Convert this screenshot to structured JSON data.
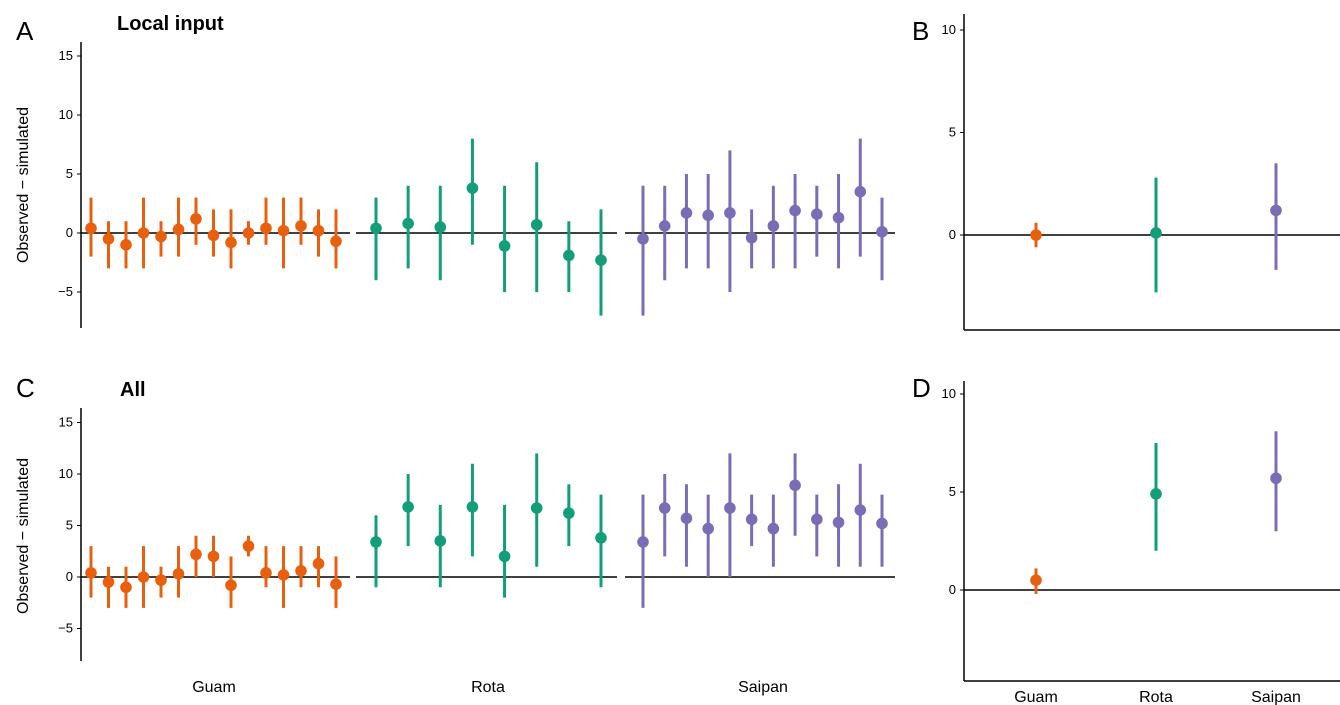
{
  "colors": {
    "Guam": "#E8600E",
    "Rota": "#129E78",
    "Saipan": "#7B6DB5",
    "axis": "#000000"
  },
  "chart_data": [
    {
      "panel": "A",
      "title": "Local input",
      "type": "scatter",
      "error_bars": true,
      "ylabel": "Observed − simulated",
      "ylim": [
        -8,
        16
      ],
      "yticks": [
        -5,
        0,
        5,
        10,
        15
      ],
      "reference_line": 0,
      "groups": [
        {
          "name": "Guam",
          "points": [
            {
              "y": 0.4,
              "lo": -2,
              "hi": 3
            },
            {
              "y": -0.5,
              "lo": -3,
              "hi": 1
            },
            {
              "y": -1.0,
              "lo": -3,
              "hi": 1
            },
            {
              "y": 0.0,
              "lo": -3,
              "hi": 3
            },
            {
              "y": -0.3,
              "lo": -2,
              "hi": 1
            },
            {
              "y": 0.3,
              "lo": -2,
              "hi": 3
            },
            {
              "y": 1.2,
              "lo": -1,
              "hi": 3
            },
            {
              "y": -0.2,
              "lo": -2,
              "hi": 2
            },
            {
              "y": -0.8,
              "lo": -3,
              "hi": 2
            },
            {
              "y": 0.0,
              "lo": -1,
              "hi": 1
            },
            {
              "y": 0.4,
              "lo": -1,
              "hi": 3
            },
            {
              "y": 0.2,
              "lo": -3,
              "hi": 3
            },
            {
              "y": 0.6,
              "lo": -1,
              "hi": 3
            },
            {
              "y": 0.2,
              "lo": -2,
              "hi": 2
            },
            {
              "y": -0.7,
              "lo": -3,
              "hi": 2
            }
          ]
        },
        {
          "name": "Rota",
          "points": [
            {
              "y": 0.4,
              "lo": -4,
              "hi": 3
            },
            {
              "y": 0.8,
              "lo": -3,
              "hi": 4
            },
            {
              "y": 0.5,
              "lo": -4,
              "hi": 4
            },
            {
              "y": 3.8,
              "lo": -1,
              "hi": 8
            },
            {
              "y": -1.1,
              "lo": -5,
              "hi": 4
            },
            {
              "y": 0.7,
              "lo": -5,
              "hi": 6
            },
            {
              "y": -1.9,
              "lo": -5,
              "hi": 1
            },
            {
              "y": -2.3,
              "lo": -7,
              "hi": 2
            }
          ]
        },
        {
          "name": "Saipan",
          "points": [
            {
              "y": -0.5,
              "lo": -7,
              "hi": 4
            },
            {
              "y": 0.6,
              "lo": -4,
              "hi": 4
            },
            {
              "y": 1.7,
              "lo": -3,
              "hi": 5
            },
            {
              "y": 1.5,
              "lo": -3,
              "hi": 5
            },
            {
              "y": 1.7,
              "lo": -5,
              "hi": 7
            },
            {
              "y": -0.4,
              "lo": -3,
              "hi": 2
            },
            {
              "y": 0.6,
              "lo": -3,
              "hi": 4
            },
            {
              "y": 1.9,
              "lo": -3,
              "hi": 5
            },
            {
              "y": 1.6,
              "lo": -2,
              "hi": 4
            },
            {
              "y": 1.3,
              "lo": -3,
              "hi": 5
            },
            {
              "y": 3.5,
              "lo": -2,
              "hi": 8
            },
            {
              "y": 0.1,
              "lo": -4,
              "hi": 3
            }
          ]
        }
      ]
    },
    {
      "panel": "B",
      "title": "",
      "type": "scatter",
      "error_bars": true,
      "ylim": [
        -4.7,
        10.7
      ],
      "yticks": [
        0,
        5,
        10
      ],
      "reference_line": 0,
      "categories": [
        "Guam",
        "Rota",
        "Saipan"
      ],
      "points": [
        {
          "group": "Guam",
          "y": 0.0,
          "lo": -0.6,
          "hi": 0.6
        },
        {
          "group": "Rota",
          "y": 0.1,
          "lo": -2.8,
          "hi": 2.8
        },
        {
          "group": "Saipan",
          "y": 1.2,
          "lo": -1.7,
          "hi": 3.5
        }
      ]
    },
    {
      "panel": "C",
      "title": "All",
      "type": "scatter",
      "error_bars": true,
      "ylabel": "Observed − simulated",
      "ylim": [
        -8,
        16
      ],
      "yticks": [
        -5,
        0,
        5,
        10,
        15
      ],
      "reference_line": 0,
      "groups": [
        {
          "name": "Guam",
          "points": [
            {
              "y": 0.4,
              "lo": -2,
              "hi": 3
            },
            {
              "y": -0.5,
              "lo": -3,
              "hi": 1
            },
            {
              "y": -1.0,
              "lo": -3,
              "hi": 1
            },
            {
              "y": 0.0,
              "lo": -3,
              "hi": 3
            },
            {
              "y": -0.3,
              "lo": -2,
              "hi": 1
            },
            {
              "y": 0.3,
              "lo": -2,
              "hi": 3
            },
            {
              "y": 2.2,
              "lo": 0,
              "hi": 4
            },
            {
              "y": 2.0,
              "lo": 0,
              "hi": 4
            },
            {
              "y": -0.8,
              "lo": -3,
              "hi": 2
            },
            {
              "y": 3.0,
              "lo": 2,
              "hi": 4
            },
            {
              "y": 0.4,
              "lo": -1,
              "hi": 3
            },
            {
              "y": 0.2,
              "lo": -3,
              "hi": 3
            },
            {
              "y": 0.6,
              "lo": -1,
              "hi": 3
            },
            {
              "y": 1.3,
              "lo": -1,
              "hi": 3
            },
            {
              "y": -0.7,
              "lo": -3,
              "hi": 2
            }
          ]
        },
        {
          "name": "Rota",
          "points": [
            {
              "y": 3.4,
              "lo": -1,
              "hi": 6
            },
            {
              "y": 6.8,
              "lo": 3,
              "hi": 10
            },
            {
              "y": 3.5,
              "lo": -1,
              "hi": 7
            },
            {
              "y": 6.8,
              "lo": 2,
              "hi": 11
            },
            {
              "y": 2.0,
              "lo": -2,
              "hi": 7
            },
            {
              "y": 6.7,
              "lo": 1,
              "hi": 12
            },
            {
              "y": 6.2,
              "lo": 3,
              "hi": 9
            },
            {
              "y": 3.8,
              "lo": -1,
              "hi": 8
            }
          ]
        },
        {
          "name": "Saipan",
          "points": [
            {
              "y": 3.4,
              "lo": -3,
              "hi": 8
            },
            {
              "y": 6.7,
              "lo": 2,
              "hi": 10
            },
            {
              "y": 5.7,
              "lo": 1,
              "hi": 9
            },
            {
              "y": 4.7,
              "lo": 0,
              "hi": 8
            },
            {
              "y": 6.7,
              "lo": 0,
              "hi": 12
            },
            {
              "y": 5.6,
              "lo": 3,
              "hi": 8
            },
            {
              "y": 4.7,
              "lo": 1,
              "hi": 8
            },
            {
              "y": 8.9,
              "lo": 4,
              "hi": 12
            },
            {
              "y": 5.6,
              "lo": 2,
              "hi": 8
            },
            {
              "y": 5.3,
              "lo": 1,
              "hi": 9
            },
            {
              "y": 6.5,
              "lo": 1,
              "hi": 11
            },
            {
              "y": 5.2,
              "lo": 1,
              "hi": 8
            }
          ]
        }
      ]
    },
    {
      "panel": "D",
      "title": "",
      "type": "scatter",
      "error_bars": true,
      "ylim": [
        -4.7,
        10.7
      ],
      "yticks": [
        0,
        5,
        10
      ],
      "reference_line": 0,
      "categories": [
        "Guam",
        "Rota",
        "Saipan"
      ],
      "points": [
        {
          "group": "Guam",
          "y": 0.5,
          "lo": -0.2,
          "hi": 1.1
        },
        {
          "group": "Rota",
          "y": 4.9,
          "lo": 2.0,
          "hi": 7.5
        },
        {
          "group": "Saipan",
          "y": 5.7,
          "lo": 3.0,
          "hi": 8.1
        }
      ]
    }
  ]
}
